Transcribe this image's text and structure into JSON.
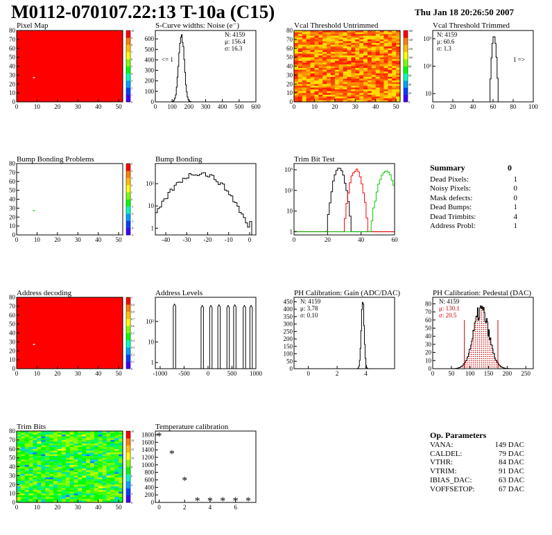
{
  "header": {
    "title": "M0112-070107.22:13 T-10a (C15)",
    "date": "Thu Jan 18 20:26:50 2007"
  },
  "panels": {
    "pixel_map": {
      "title": "Pixel Map"
    },
    "scurve": {
      "title": "S-Curve widths: Noise (e⁻)",
      "n": "N: 4159",
      "mu": "μ: 156.4",
      "sigma": "σ: 16.3",
      "underflow": "<= 1"
    },
    "vcal_untrimmed": {
      "title": "Vcal Threshold Untrimmed"
    },
    "vcal_trimmed": {
      "title": "Vcal Threshold Trimmed",
      "n": "N: 4159",
      "mu": "μ: 60.6",
      "sigma": "σ: 1.3",
      "overflow": "1 =>"
    },
    "bump_problems": {
      "title": "Bump Bonding Problems"
    },
    "bump_bonding": {
      "title": "Bump Bonding"
    },
    "trim_bit_test": {
      "title": "Trim Bit Test"
    },
    "address_decoding": {
      "title": "Address decoding"
    },
    "address_levels": {
      "title": "Address Levels"
    },
    "ph_gain": {
      "title": "PH Calibration: Gain (ADC/DAC)",
      "n": "N: 4159",
      "mu": "μ: 3.78",
      "sigma": "σ: 0.10"
    },
    "ph_pedestal": {
      "title": "PH Calibration: Pedestal (DAC)",
      "n": "N: 4159",
      "mu": "μ: 130.1",
      "sigma": "σ: 20.5"
    },
    "trim_bits": {
      "title": "Trim Bits"
    },
    "temperature": {
      "title": "Temperature calibration"
    }
  },
  "summary": {
    "title": "Summary",
    "total": "0",
    "rows": [
      {
        "label": "Dead Pixels:",
        "value": "1"
      },
      {
        "label": "Noisy Pixels:",
        "value": "0"
      },
      {
        "label": "Mask defects:",
        "value": "0"
      },
      {
        "label": "Dead Bumps:",
        "value": "1"
      },
      {
        "label": "Dead Trimbits:",
        "value": "4"
      },
      {
        "label": "Address Probl:",
        "value": "1"
      }
    ]
  },
  "op_params": {
    "title": "Op. Parameters",
    "rows": [
      {
        "label": "VANA:",
        "value": "149 DAC"
      },
      {
        "label": "CALDEL:",
        "value": "79 DAC"
      },
      {
        "label": "VTHR:",
        "value": "84 DAC"
      },
      {
        "label": "VTRIM:",
        "value": "91 DAC"
      },
      {
        "label": "IBIAS_DAC:",
        "value": "63 DAC"
      },
      {
        "label": "VOFFSETOP:",
        "value": "67 DAC"
      }
    ]
  },
  "colors": {
    "hist_line": "#000000",
    "trim_red": "#ff0000",
    "trim_green": "#00cc00",
    "pedestal_red": "#cc0000",
    "dead_pixel": "#ffffff"
  },
  "chart_data": [
    {
      "id": "pixel_map",
      "type": "heatmap",
      "xlim": [
        0,
        52
      ],
      "ylim": [
        0,
        80
      ],
      "xticks": [
        0,
        10,
        20,
        30,
        40,
        50
      ],
      "yticks": [
        0,
        10,
        20,
        30,
        40,
        50,
        60,
        70,
        80
      ],
      "zlim": [
        0,
        10
      ],
      "zticks": [
        0,
        1,
        2,
        3,
        4,
        5,
        6,
        7,
        8,
        9,
        10
      ],
      "fill_color": "#ff0000",
      "dead_pixels": [
        [
          8,
          27
        ]
      ]
    },
    {
      "id": "scurve",
      "type": "histogram",
      "xlim": [
        0,
        600
      ],
      "ylim": [
        0,
        680
      ],
      "xticks": [
        0,
        100,
        200,
        300,
        400,
        500,
        600
      ],
      "yticks": [
        0,
        100,
        200,
        300,
        400,
        500,
        600
      ],
      "peaks": [
        {
          "mean": 156,
          "sigma": 16,
          "height": 650
        }
      ],
      "bins": 120,
      "scale": "linear"
    },
    {
      "id": "vcal_untrimmed",
      "type": "heatmap",
      "xlim": [
        0,
        52
      ],
      "ylim": [
        0,
        80
      ],
      "xticks": [
        0,
        10,
        20,
        30,
        40,
        50
      ],
      "yticks": [
        0,
        10,
        20,
        30,
        40,
        50,
        60,
        70,
        80
      ],
      "zlim": [
        0,
        160
      ],
      "zticks": [
        0,
        20,
        40,
        60,
        80,
        100,
        120,
        140,
        160
      ],
      "palette": "untrimmed"
    },
    {
      "id": "vcal_trimmed",
      "type": "histogram",
      "xlim": [
        0,
        100
      ],
      "ylim": [
        5,
        2000
      ],
      "xticks": [
        0,
        20,
        40,
        60,
        80,
        100
      ],
      "yticks": [
        10,
        100,
        1000
      ],
      "ytick_labels": [
        "10",
        "10²",
        "10³"
      ],
      "peaks": [
        {
          "mean": 61,
          "sigma": 1.3,
          "height": 1300
        }
      ],
      "bins": 100,
      "scale": "log"
    },
    {
      "id": "bump_problems",
      "type": "heatmap",
      "xlim": [
        0,
        52
      ],
      "ylim": [
        0,
        80
      ],
      "xticks": [
        0,
        10,
        20,
        30,
        40,
        50
      ],
      "yticks": [
        0,
        10,
        20,
        30,
        40,
        50,
        60,
        70,
        80
      ],
      "zlim": [
        -5,
        5
      ],
      "zticks": [
        -5,
        -4,
        -3,
        -2,
        -1,
        0,
        1,
        2,
        3,
        4,
        5
      ],
      "fill_color": "#ffffff",
      "marked_pixels": [
        [
          8,
          27
        ]
      ]
    },
    {
      "id": "bump_bonding",
      "type": "histogram",
      "xlim": [
        -45,
        3
      ],
      "ylim": [
        0.5,
        800
      ],
      "xticks": [
        -40,
        -30,
        -20,
        -10,
        0
      ],
      "yticks": [
        1,
        10,
        100
      ],
      "ytick_labels": [
        "1",
        "10",
        "10²"
      ],
      "peaks": [
        {
          "mean": -24,
          "sigma": 7,
          "height": 300
        }
      ],
      "bins": 48,
      "scale": "log",
      "outlier": 0
    },
    {
      "id": "trim_bit_test",
      "type": "histogram",
      "xlim": [
        0,
        60
      ],
      "ylim": [
        0.7,
        2000
      ],
      "xticks": [
        0,
        20,
        40,
        60
      ],
      "yticks": [
        1,
        10,
        100,
        1000
      ],
      "ytick_labels": [
        "1",
        "10",
        "10²",
        "10³"
      ],
      "series": [
        {
          "name": "",
          "color": "#000000",
          "mean": 27,
          "sigma": 2.0,
          "height": 1200
        },
        {
          "name": "",
          "color": "#ff0000",
          "mean": 37,
          "sigma": 2.0,
          "height": 1000
        },
        {
          "name": "",
          "color": "#00cc00",
          "mean": 55,
          "sigma": 2.6,
          "height": 800
        }
      ],
      "baseline": 1,
      "bins": 60,
      "scale": "log"
    },
    {
      "id": "address_decoding",
      "type": "heatmap",
      "xlim": [
        0,
        52
      ],
      "ylim": [
        0,
        80
      ],
      "xticks": [
        0,
        10,
        20,
        30,
        40,
        50
      ],
      "yticks": [
        0,
        10,
        20,
        30,
        40,
        50,
        60,
        70,
        80
      ],
      "zlim": [
        0,
        1
      ],
      "zticks": [
        0,
        0.1,
        0.2,
        0.3,
        0.4,
        0.5,
        0.6,
        0.7,
        0.8,
        0.9,
        1
      ],
      "fill_color": "#ff0000",
      "dead_pixels": [
        [
          8,
          27
        ]
      ]
    },
    {
      "id": "address_levels",
      "type": "histogram",
      "xlim": [
        -1100,
        1000
      ],
      "ylim": [
        0.5,
        1500
      ],
      "xticks": [
        -1000,
        -500,
        0,
        500,
        1000
      ],
      "yticks": [
        1,
        10,
        100
      ],
      "ytick_labels": [
        "1",
        "10",
        "10²"
      ],
      "peaks": [
        {
          "mean": -700,
          "height": 700
        },
        {
          "mean": -120,
          "height": 600
        },
        {
          "mean": 60,
          "height": 600
        },
        {
          "mean": 230,
          "height": 650
        },
        {
          "mean": 420,
          "height": 600
        },
        {
          "mean": 560,
          "height": 650
        },
        {
          "mean": 760,
          "height": 600
        },
        {
          "mean": 900,
          "height": 600
        }
      ],
      "scale": "log"
    },
    {
      "id": "ph_gain",
      "type": "histogram",
      "xlim": [
        -1,
        6
      ],
      "ylim": [
        0,
        480
      ],
      "xticks": [
        0,
        2,
        4
      ],
      "yticks": [
        0,
        50,
        100,
        150,
        200,
        250,
        300,
        350,
        400,
        450
      ],
      "peaks": [
        {
          "mean": 3.78,
          "sigma": 0.1,
          "height": 460
        }
      ],
      "bins": 140,
      "scale": "linear"
    },
    {
      "id": "ph_pedestal",
      "type": "histogram",
      "xlim": [
        0,
        270
      ],
      "ylim": [
        0,
        88
      ],
      "xticks": [
        0,
        50,
        100,
        150,
        200,
        250
      ],
      "yticks": [
        0,
        10,
        20,
        30,
        40,
        50,
        60,
        70,
        80
      ],
      "peaks": [
        {
          "mean": 130.1,
          "sigma": 20.5,
          "height": 72
        }
      ],
      "bins": 135,
      "scale": "linear",
      "range_markers": [
        85,
        175
      ],
      "fill_color": "#cc0000"
    },
    {
      "id": "trim_bits",
      "type": "heatmap",
      "xlim": [
        0,
        52
      ],
      "ylim": [
        0,
        80
      ],
      "xticks": [
        0,
        10,
        20,
        30,
        40,
        50
      ],
      "yticks": [
        0,
        10,
        20,
        30,
        40,
        50,
        60,
        70,
        80
      ],
      "zlim": [
        0,
        16
      ],
      "zticks": [
        0,
        2,
        4,
        6,
        8,
        10,
        12,
        14,
        16
      ],
      "palette": "trimbits"
    },
    {
      "id": "temperature",
      "type": "scatter",
      "xlim": [
        -0.3,
        7.6
      ],
      "ylim": [
        0,
        1900
      ],
      "xticks": [
        0,
        2,
        4,
        6
      ],
      "yticks": [
        0,
        200,
        400,
        600,
        800,
        1000,
        1200,
        1400,
        1600,
        1800
      ],
      "x": [
        0,
        1,
        2,
        3,
        4,
        5,
        6,
        7
      ],
      "y": [
        1760,
        1290,
        580,
        40,
        40,
        40,
        40,
        40
      ]
    }
  ]
}
